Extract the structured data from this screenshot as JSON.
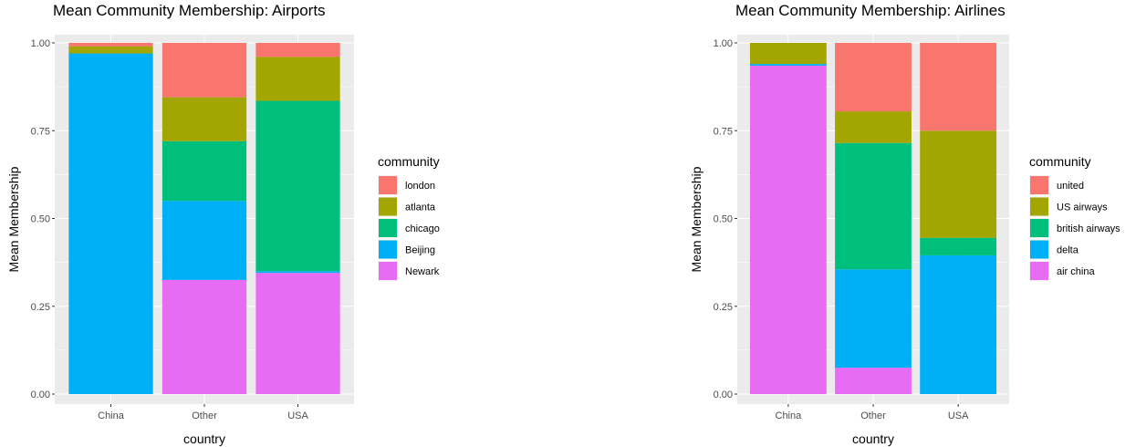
{
  "chart_data": [
    {
      "type": "bar",
      "stacked": true,
      "title": "Mean Community Membership: Airports",
      "xlabel": "country",
      "ylabel": "Mean Membership",
      "categories": [
        "China",
        "Other",
        "USA"
      ],
      "ylim": [
        0,
        1
      ],
      "yticks": [
        "0.00",
        "0.25",
        "0.50",
        "0.75",
        "1.00"
      ],
      "legend_title": "community",
      "legend_position": "right",
      "grid": true,
      "series": [
        {
          "name": "Newark",
          "color": "#E76BF3",
          "values": [
            0.0,
            0.325,
            0.345
          ]
        },
        {
          "name": "Beijing",
          "color": "#00B0F6",
          "values": [
            0.97,
            0.225,
            0.005
          ]
        },
        {
          "name": "chicago",
          "color": "#00BF7D",
          "values": [
            0.0,
            0.17,
            0.485
          ]
        },
        {
          "name": "atlanta",
          "color": "#A3A500",
          "values": [
            0.02,
            0.125,
            0.125
          ]
        },
        {
          "name": "london",
          "color": "#F8766D",
          "values": [
            0.01,
            0.155,
            0.04
          ]
        }
      ]
    },
    {
      "type": "bar",
      "stacked": true,
      "title": "Mean Community Membership: Airlines",
      "xlabel": "country",
      "ylabel": "Mean Membership",
      "categories": [
        "China",
        "Other",
        "USA"
      ],
      "ylim": [
        0,
        1
      ],
      "yticks": [
        "0.00",
        "0.25",
        "0.50",
        "0.75",
        "1.00"
      ],
      "legend_title": "community",
      "legend_position": "right",
      "grid": true,
      "series": [
        {
          "name": "air china",
          "color": "#E76BF3",
          "values": [
            0.935,
            0.075,
            0.0
          ]
        },
        {
          "name": "delta",
          "color": "#00B0F6",
          "values": [
            0.005,
            0.28,
            0.395
          ]
        },
        {
          "name": "british airways",
          "color": "#00BF7D",
          "values": [
            0.0,
            0.36,
            0.05
          ]
        },
        {
          "name": "US airways",
          "color": "#A3A500",
          "values": [
            0.06,
            0.09,
            0.305
          ]
        },
        {
          "name": "united",
          "color": "#F8766D",
          "values": [
            0.0,
            0.195,
            0.25
          ]
        }
      ]
    }
  ]
}
